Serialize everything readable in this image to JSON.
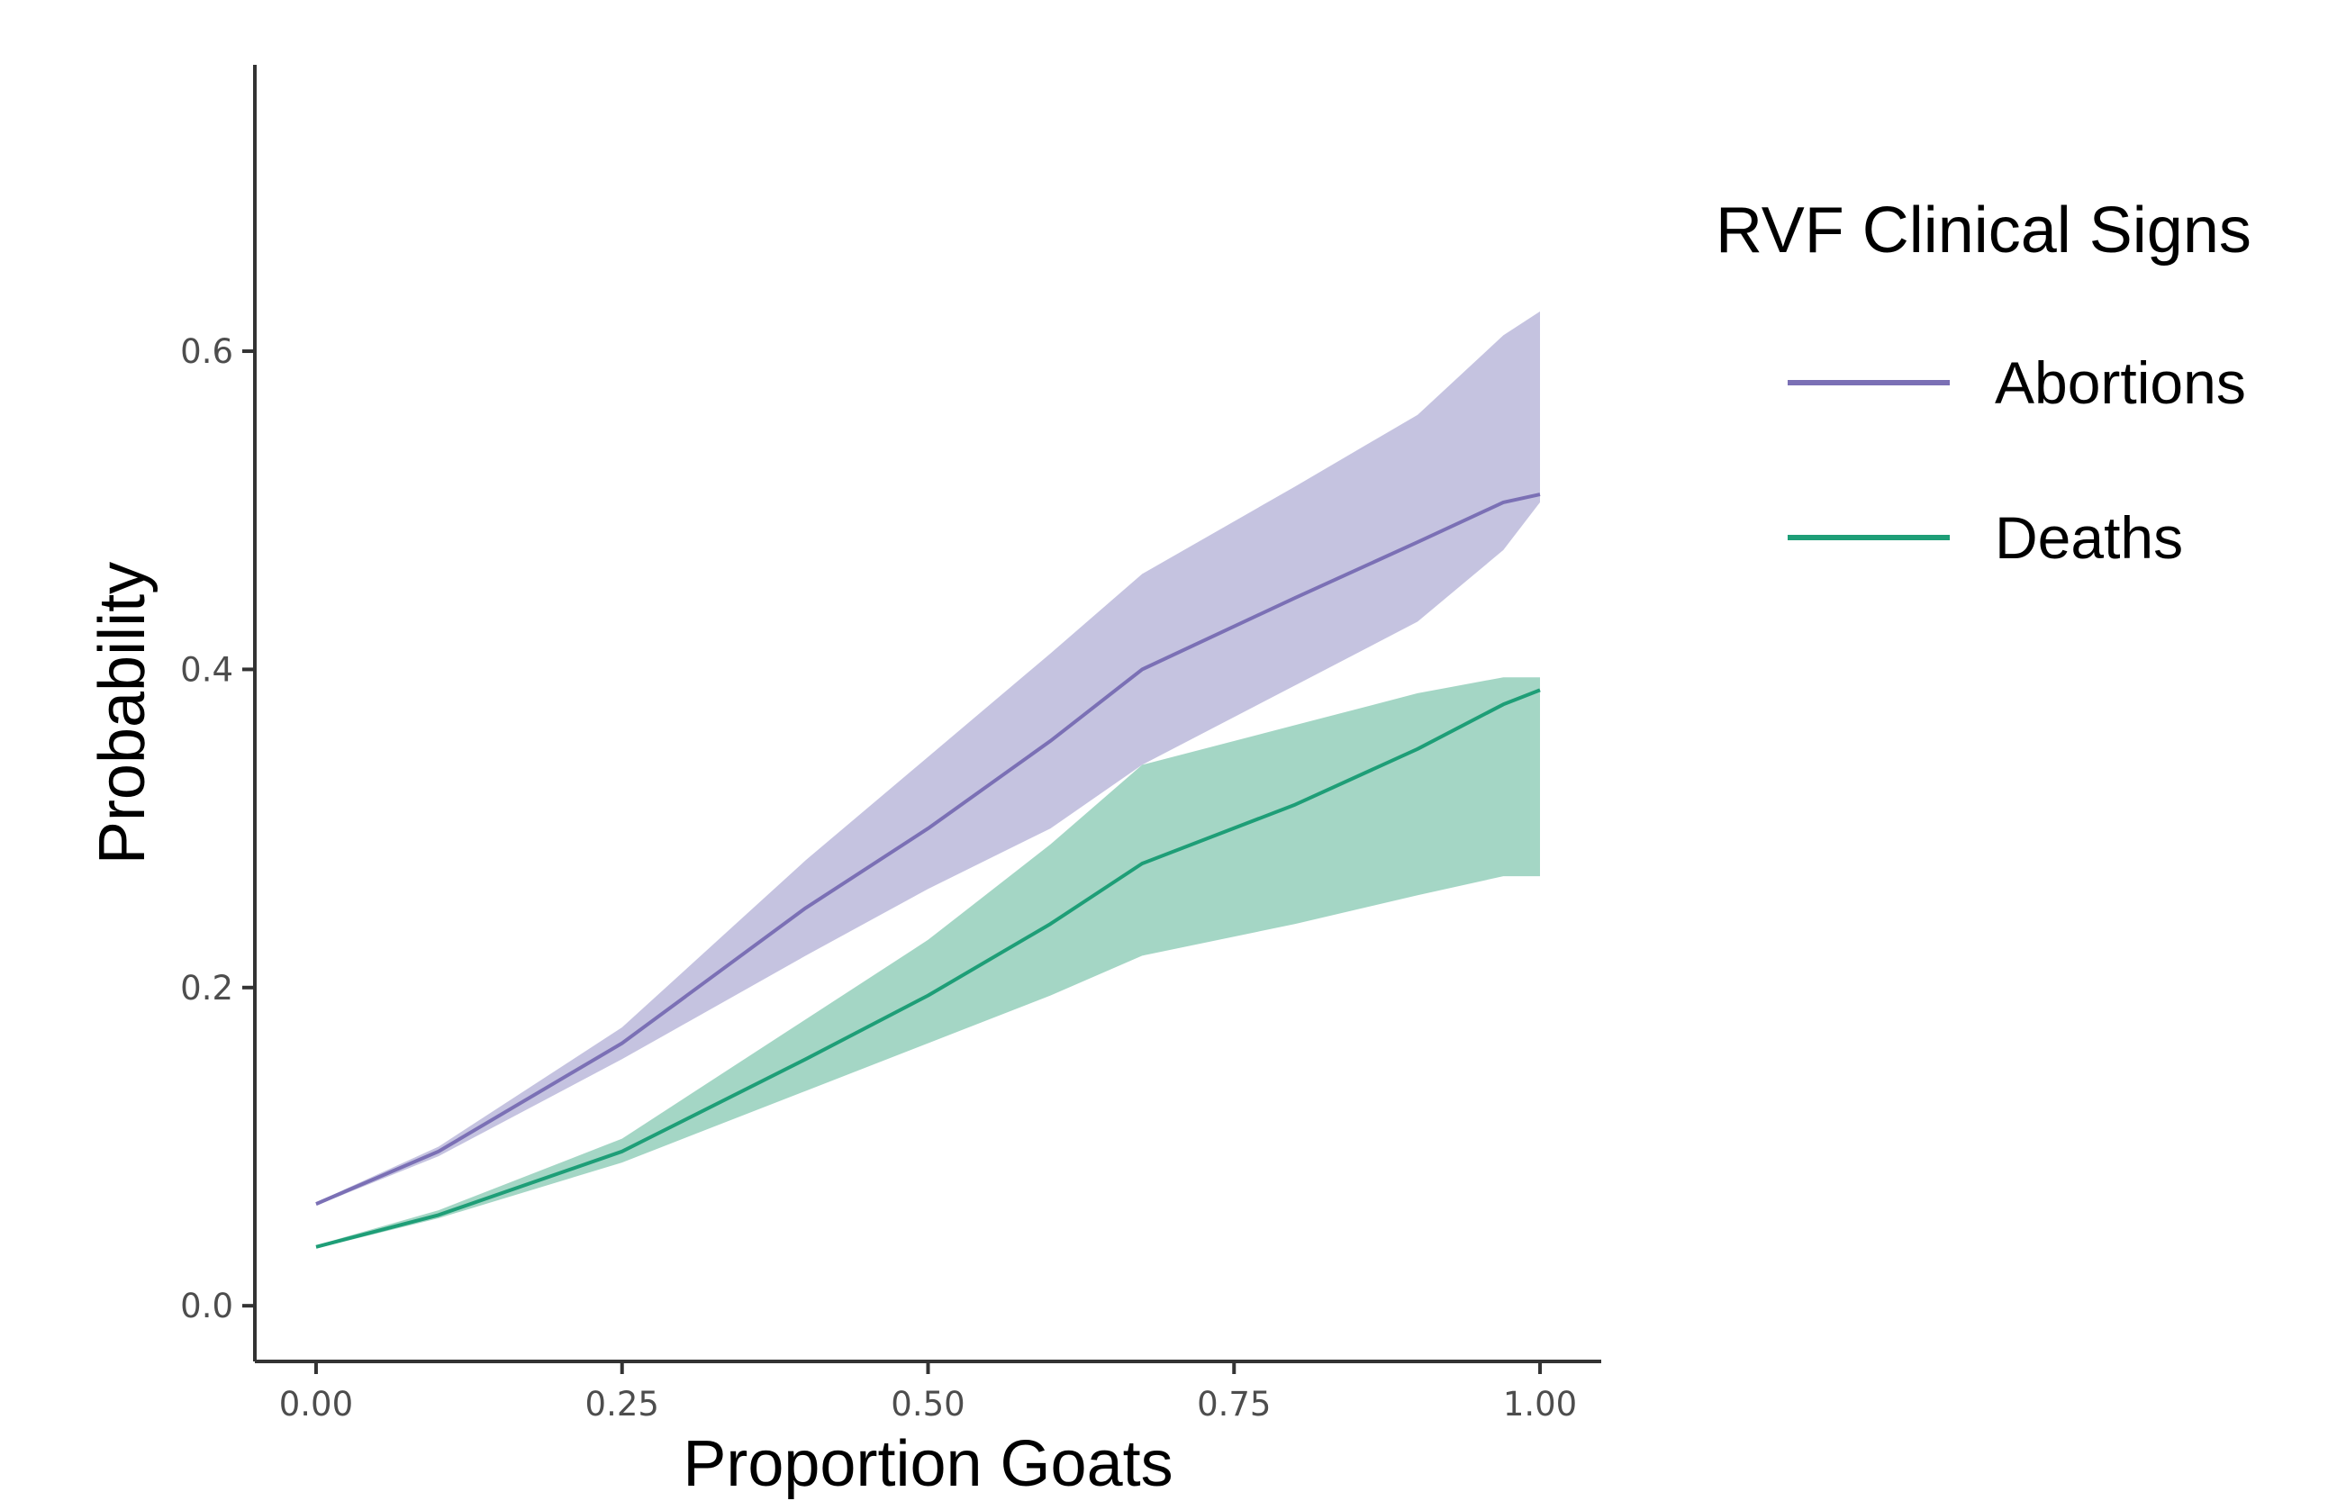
{
  "chart_data": {
    "type": "line",
    "xlabel": "Proportion Goats",
    "ylabel": "Probability",
    "xlim": [
      -0.05,
      1.05
    ],
    "ylim": [
      -0.035,
      0.78
    ],
    "x_ticks": [
      "0.00",
      "0.25",
      "0.50",
      "0.75",
      "1.00"
    ],
    "x_tick_values": [
      0.0,
      0.25,
      0.5,
      0.75,
      1.0
    ],
    "y_ticks": [
      "0.0",
      "0.2",
      "0.4",
      "0.6"
    ],
    "y_tick_values": [
      0.0,
      0.2,
      0.4,
      0.6
    ],
    "grid": false,
    "legend": {
      "title": "RVF Clinical Signs",
      "placement": "right"
    },
    "series": [
      {
        "name": "Abortions",
        "color": "#7b70b5",
        "band_color": "#c5c3e0",
        "x": [
          0.0,
          0.1,
          0.25,
          0.4,
          0.5,
          0.6,
          0.675,
          0.8,
          0.9,
          0.97,
          1.0
        ],
        "y": [
          0.064,
          0.097,
          0.165,
          0.25,
          0.3,
          0.355,
          0.4,
          0.445,
          0.48,
          0.505,
          0.51
        ],
        "lower": [
          0.063,
          0.094,
          0.155,
          0.22,
          0.262,
          0.3,
          0.34,
          0.39,
          0.43,
          0.475,
          0.505
        ],
        "upper": [
          0.065,
          0.1,
          0.175,
          0.28,
          0.345,
          0.41,
          0.46,
          0.515,
          0.56,
          0.61,
          0.625
        ]
      },
      {
        "name": "Deaths",
        "color": "#1e9e77",
        "band_color": "#8dccb6",
        "x": [
          0.0,
          0.1,
          0.25,
          0.4,
          0.5,
          0.6,
          0.675,
          0.8,
          0.9,
          0.97,
          1.0
        ],
        "y": [
          0.037,
          0.057,
          0.097,
          0.155,
          0.195,
          0.24,
          0.278,
          0.315,
          0.35,
          0.378,
          0.387
        ],
        "lower": [
          0.036,
          0.055,
          0.09,
          0.135,
          0.165,
          0.195,
          0.22,
          0.24,
          0.258,
          0.27,
          0.27
        ],
        "upper": [
          0.038,
          0.06,
          0.105,
          0.18,
          0.23,
          0.29,
          0.34,
          0.365,
          0.385,
          0.395,
          0.395
        ]
      }
    ]
  }
}
